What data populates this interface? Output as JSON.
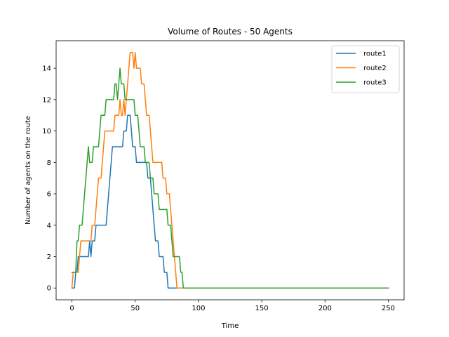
{
  "chart_data": {
    "type": "line",
    "title": "Volume of Routes - 50 Agents",
    "xlabel": "Time",
    "ylabel": "Number of agents on the route",
    "xlim": [
      -12.5,
      262.5
    ],
    "ylim": [
      -0.75,
      15.75
    ],
    "xticks": [
      0,
      50,
      100,
      150,
      200,
      250
    ],
    "yticks": [
      0,
      2,
      4,
      6,
      8,
      10,
      12,
      14
    ],
    "legend_location": "top-right",
    "grid": false,
    "series": [
      {
        "name": "route1",
        "color": "#1f77b4",
        "points": [
          [
            0,
            0
          ],
          [
            2,
            0
          ],
          [
            3,
            1
          ],
          [
            4,
            1
          ],
          [
            5,
            2
          ],
          [
            13,
            2
          ],
          [
            14,
            3
          ],
          [
            15,
            2
          ],
          [
            16,
            3
          ],
          [
            18,
            3
          ],
          [
            19,
            4
          ],
          [
            27,
            4
          ],
          [
            28,
            5
          ],
          [
            29,
            6
          ],
          [
            30,
            7
          ],
          [
            31,
            8
          ],
          [
            32,
            9
          ],
          [
            40,
            9
          ],
          [
            41,
            10
          ],
          [
            43,
            10
          ],
          [
            44,
            11
          ],
          [
            46,
            11
          ],
          [
            47,
            10
          ],
          [
            48,
            9
          ],
          [
            50,
            9
          ],
          [
            51,
            8
          ],
          [
            59,
            8
          ],
          [
            60,
            7
          ],
          [
            62,
            7
          ],
          [
            63,
            6
          ],
          [
            64,
            5
          ],
          [
            65,
            4
          ],
          [
            66,
            3
          ],
          [
            68,
            3
          ],
          [
            69,
            2
          ],
          [
            72,
            2
          ],
          [
            73,
            1
          ],
          [
            75,
            1
          ],
          [
            76,
            0
          ],
          [
            250,
            0
          ]
        ]
      },
      {
        "name": "route2",
        "color": "#ff7f0e",
        "points": [
          [
            0,
            0
          ],
          [
            1,
            1
          ],
          [
            5,
            1
          ],
          [
            6,
            2
          ],
          [
            7,
            3
          ],
          [
            15,
            3
          ],
          [
            16,
            4
          ],
          [
            18,
            4
          ],
          [
            19,
            5
          ],
          [
            20,
            6
          ],
          [
            21,
            7
          ],
          [
            23,
            7
          ],
          [
            24,
            8
          ],
          [
            25,
            9
          ],
          [
            26,
            10
          ],
          [
            33,
            10
          ],
          [
            34,
            11
          ],
          [
            37,
            11
          ],
          [
            38,
            12
          ],
          [
            39,
            11
          ],
          [
            40,
            11
          ],
          [
            41,
            12
          ],
          [
            42,
            11
          ],
          [
            43,
            12
          ],
          [
            44,
            13
          ],
          [
            45,
            14
          ],
          [
            46,
            15
          ],
          [
            48,
            15
          ],
          [
            49,
            14
          ],
          [
            50,
            15
          ],
          [
            51,
            14
          ],
          [
            54,
            14
          ],
          [
            55,
            13
          ],
          [
            57,
            13
          ],
          [
            58,
            12
          ],
          [
            59,
            11
          ],
          [
            61,
            11
          ],
          [
            62,
            10
          ],
          [
            63,
            9
          ],
          [
            64,
            8
          ],
          [
            71,
            8
          ],
          [
            72,
            7
          ],
          [
            74,
            7
          ],
          [
            75,
            6
          ],
          [
            77,
            6
          ],
          [
            78,
            5
          ],
          [
            79,
            4
          ],
          [
            80,
            3
          ],
          [
            81,
            2
          ],
          [
            82,
            1
          ],
          [
            83,
            0
          ],
          [
            250,
            0
          ]
        ]
      },
      {
        "name": "route3",
        "color": "#2ca02c",
        "points": [
          [
            0,
            1
          ],
          [
            3,
            1
          ],
          [
            4,
            3
          ],
          [
            5,
            3
          ],
          [
            6,
            4
          ],
          [
            8,
            4
          ],
          [
            9,
            5
          ],
          [
            10,
            6
          ],
          [
            11,
            7
          ],
          [
            12,
            8
          ],
          [
            13,
            9
          ],
          [
            14,
            8
          ],
          [
            16,
            8
          ],
          [
            17,
            9
          ],
          [
            21,
            9
          ],
          [
            22,
            10
          ],
          [
            23,
            11
          ],
          [
            26,
            11
          ],
          [
            27,
            12
          ],
          [
            33,
            12
          ],
          [
            34,
            13
          ],
          [
            35,
            13
          ],
          [
            36,
            12
          ],
          [
            37,
            13
          ],
          [
            38,
            14
          ],
          [
            39,
            13
          ],
          [
            41,
            13
          ],
          [
            42,
            12
          ],
          [
            49,
            12
          ],
          [
            50,
            11
          ],
          [
            52,
            11
          ],
          [
            53,
            10
          ],
          [
            54,
            9
          ],
          [
            57,
            9
          ],
          [
            58,
            8
          ],
          [
            61,
            8
          ],
          [
            62,
            7
          ],
          [
            64,
            7
          ],
          [
            65,
            6
          ],
          [
            68,
            6
          ],
          [
            69,
            5
          ],
          [
            75,
            5
          ],
          [
            76,
            4
          ],
          [
            78,
            4
          ],
          [
            79,
            3
          ],
          [
            80,
            2
          ],
          [
            85,
            2
          ],
          [
            86,
            1
          ],
          [
            87,
            1
          ],
          [
            88,
            0
          ],
          [
            250,
            0
          ]
        ]
      }
    ]
  }
}
